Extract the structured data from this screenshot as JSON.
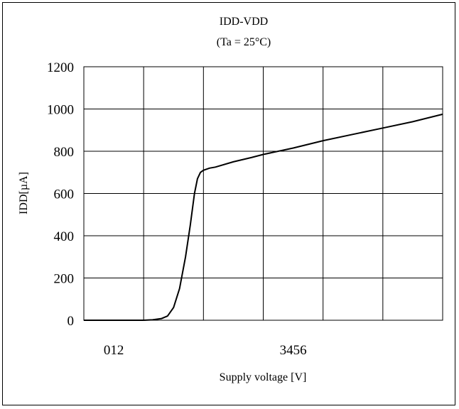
{
  "chart_data": {
    "type": "line",
    "title": "IDD-VDD",
    "subtitle": "(Ta = 25°C)",
    "xlabel": "Supply voltage [V]",
    "ylabel": "IDD[µA]",
    "xlim": [
      0,
      6
    ],
    "ylim": [
      0,
      1200
    ],
    "x_tick_labels": [
      {
        "x": 0.5,
        "text": "012"
      },
      {
        "x": 3.5,
        "text": "3456"
      }
    ],
    "y_ticks": [
      0,
      200,
      400,
      600,
      800,
      1000,
      1200
    ],
    "grid": true,
    "series": [
      {
        "x": [
          0,
          1.0,
          1.15,
          1.3,
          1.4,
          1.5,
          1.6,
          1.7,
          1.78,
          1.85,
          1.9,
          1.95,
          2.0,
          2.1,
          2.2,
          2.5,
          2.8,
          3.0,
          3.5,
          4.0,
          4.5,
          5.0,
          5.5,
          6.0
        ],
        "y": [
          0,
          0,
          2,
          8,
          20,
          60,
          150,
          300,
          450,
          600,
          670,
          700,
          710,
          720,
          725,
          750,
          770,
          785,
          815,
          850,
          880,
          910,
          940,
          975
        ]
      }
    ]
  }
}
